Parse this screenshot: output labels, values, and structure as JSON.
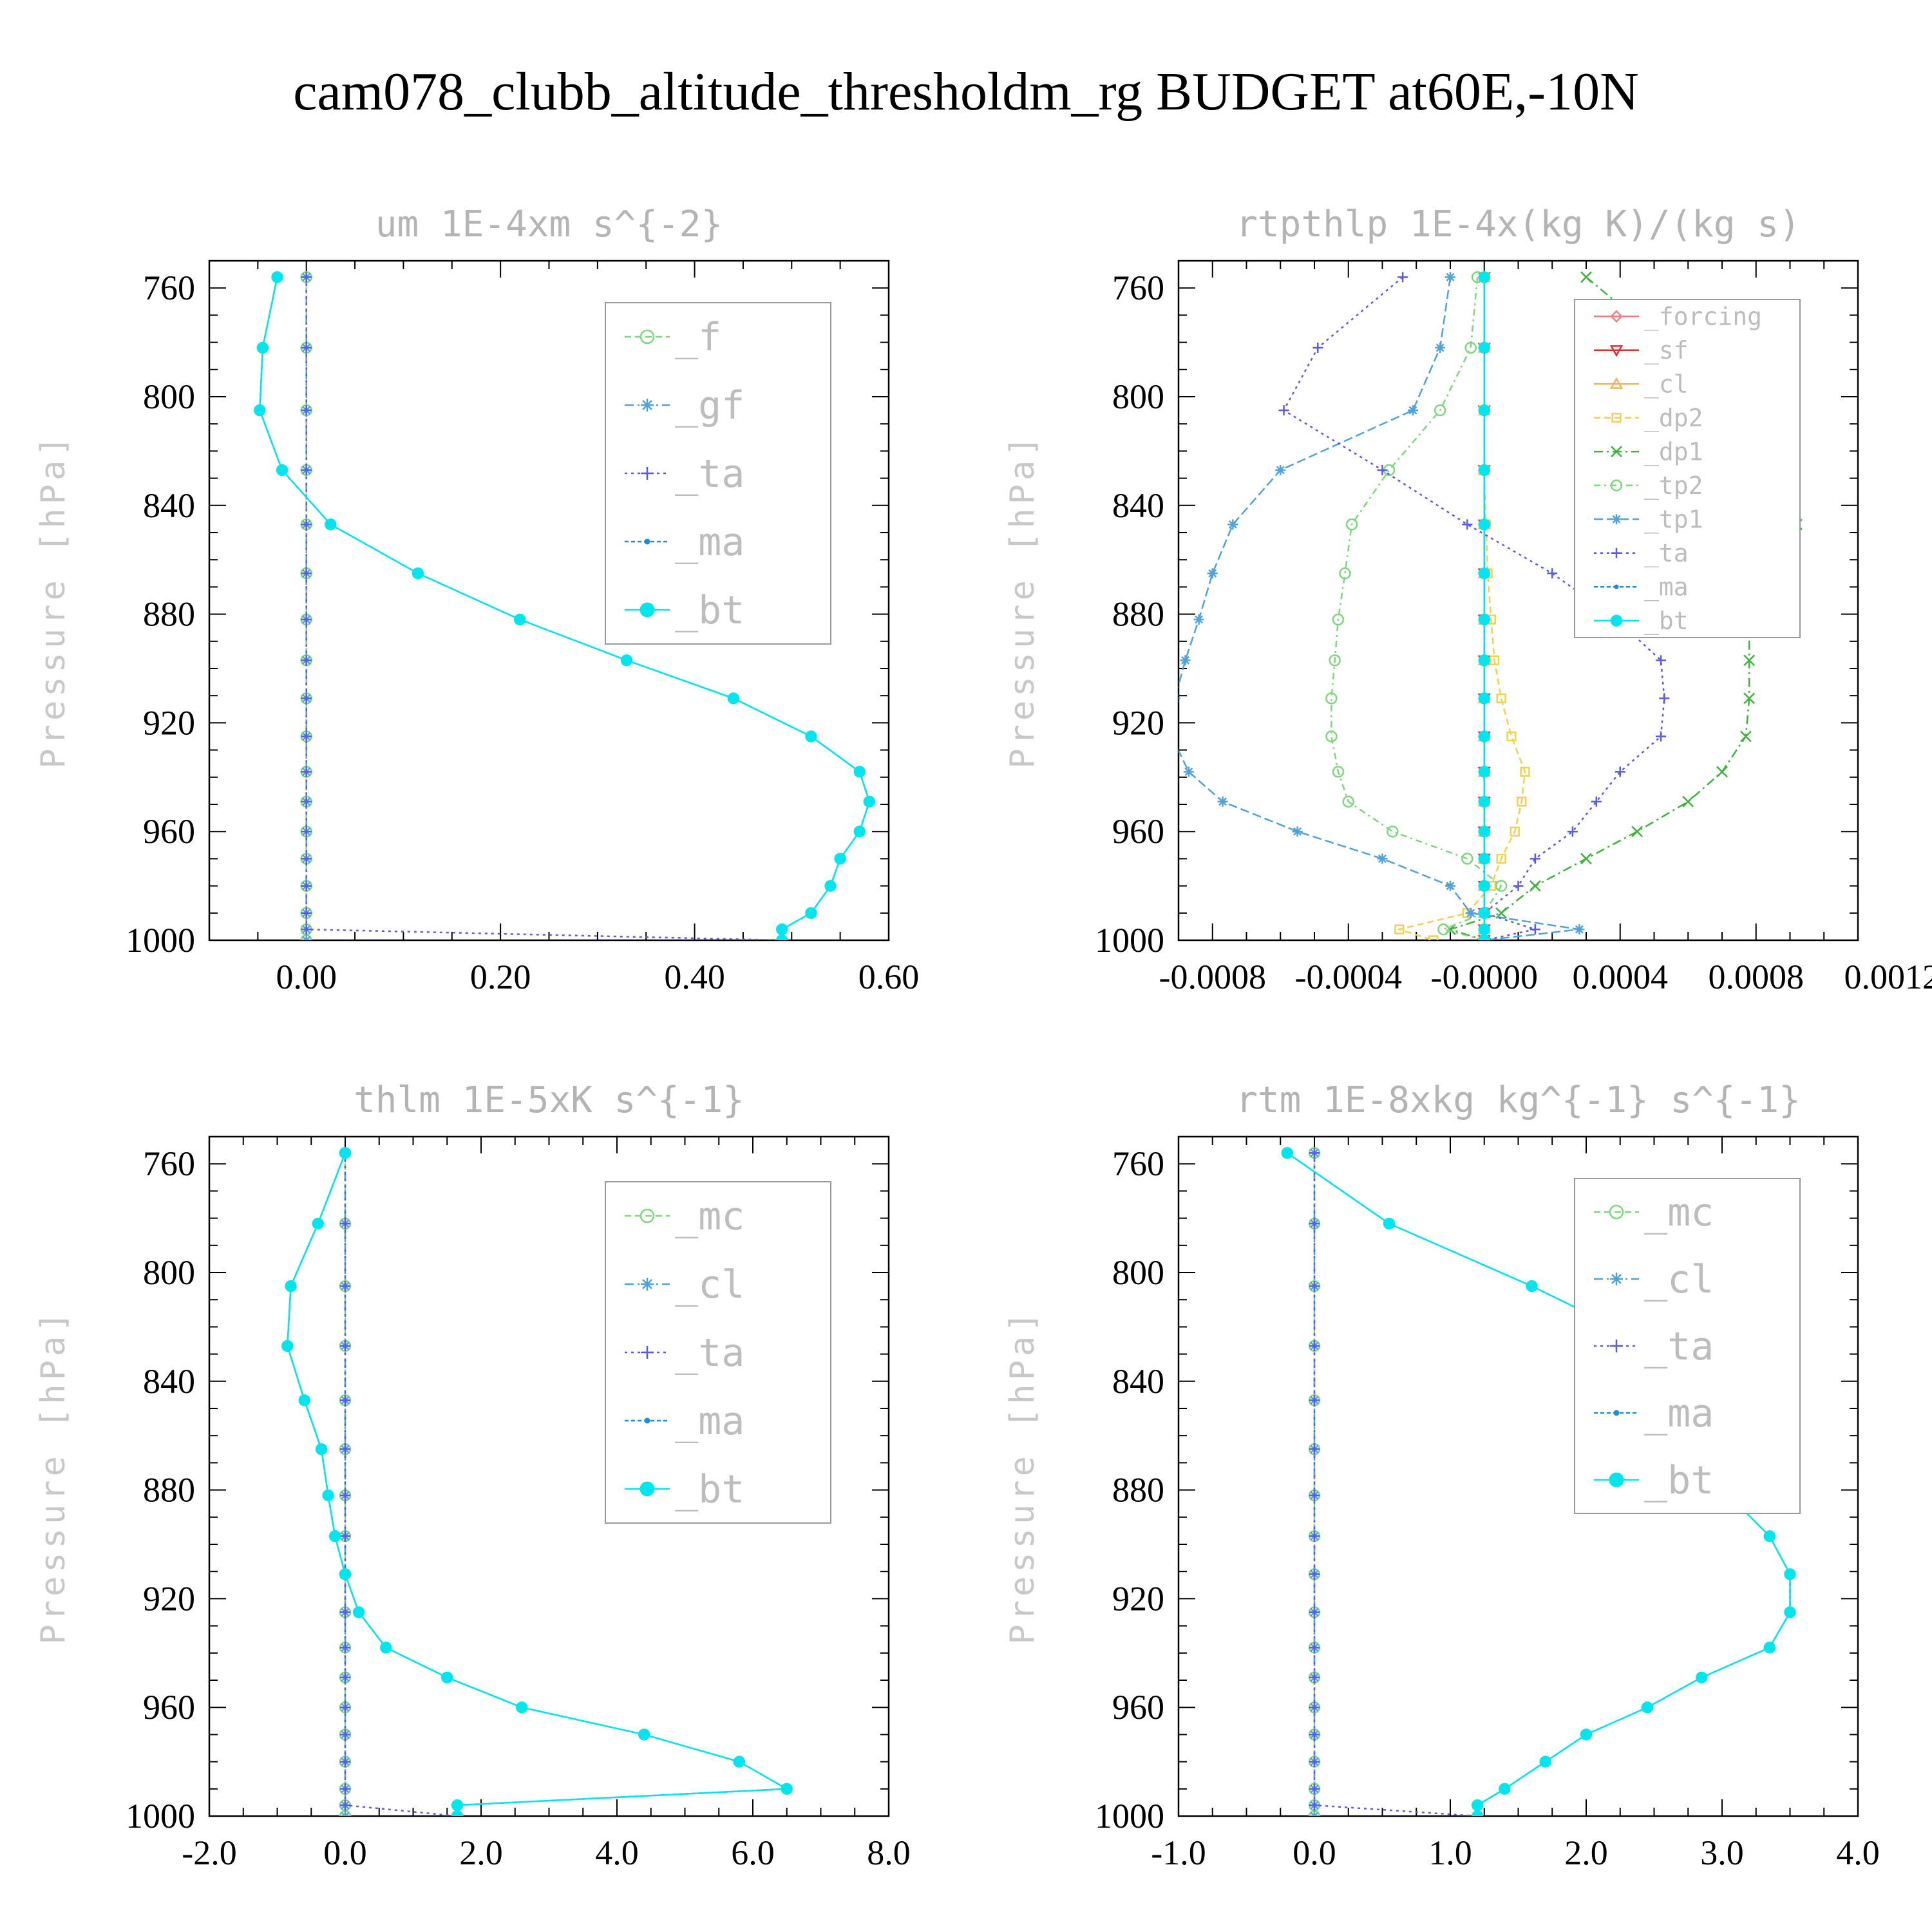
{
  "figure": {
    "title": "cam078_clubb_altitude_thresholdm_rg  BUDGET at60E,-10N"
  },
  "colors": {
    "_f": "#7fd67f",
    "_gf": "#4fa3d9",
    "_ta": "#5a5ae6",
    "_ma": "#1a8fd8",
    "_bt": "#00e5ee",
    "_forcing": "#f08080",
    "_sf": "#e03030",
    "_cl": "#f2b35a",
    "_dp2": "#f2d24a",
    "_dp1": "#3cb33c",
    "_tp2": "#7fd67f",
    "_tp1": "#4fa3d9",
    "_mc": "#7fd67f"
  },
  "chart_data": [
    {
      "type": "line",
      "title": "um  1E-4xm s^{-2}",
      "ylabel": "Pressure [hPa]",
      "xlim": [
        -0.1,
        0.6
      ],
      "xticks": [
        0.0,
        0.2,
        0.4,
        0.6
      ],
      "xtick_labels": [
        "0.00",
        "0.20",
        "0.40",
        "0.60"
      ],
      "ylim": [
        1000,
        750
      ],
      "yticks": [
        760,
        800,
        840,
        880,
        920,
        960,
        1000
      ],
      "ytick_labels": [
        "760",
        "800",
        "840",
        "880",
        "920",
        "960",
        "1000"
      ],
      "y": [
        756,
        782,
        805,
        827,
        847,
        865,
        882,
        897,
        911,
        925,
        938,
        949,
        960,
        970,
        980,
        990,
        996,
        1000
      ],
      "legend": {
        "position": "top-right",
        "font_size": 60
      },
      "series": [
        {
          "name": "_f",
          "color": "#7fd67f",
          "marker": "circle-open",
          "dash": "10,6",
          "values": [
            0,
            0,
            0,
            0,
            0,
            0,
            0,
            0,
            0,
            0,
            0,
            0,
            0,
            0,
            0,
            0,
            0,
            0
          ]
        },
        {
          "name": "_gf",
          "color": "#4fa3d9",
          "marker": "asterisk",
          "dash": "14,6,3,6",
          "values": [
            0,
            0,
            0,
            0,
            0,
            0,
            0,
            0,
            0,
            0,
            0,
            0,
            0,
            0,
            0,
            0,
            0,
            0
          ]
        },
        {
          "name": "_ta",
          "color": "#5a5ae6",
          "marker": "plus",
          "dash": "4,6",
          "values": [
            0,
            0,
            0,
            0,
            0,
            0,
            0,
            0,
            0,
            0,
            0,
            0,
            0,
            0,
            0,
            0,
            0.0,
            0.49
          ]
        },
        {
          "name": "_ma",
          "color": "#1a8fd8",
          "marker": "dot",
          "dash": "6,4",
          "values": [
            -0.03,
            -0.045,
            -0.048,
            -0.025,
            0.025,
            0.115,
            0.22,
            0.33,
            0.44,
            0.52,
            0.57,
            0.58,
            0.57,
            0.55,
            0.54,
            0.52,
            0.49,
            0.49
          ]
        },
        {
          "name": "_bt",
          "color": "#00e5ee",
          "marker": "dot-filled",
          "dash": "",
          "values": [
            -0.03,
            -0.045,
            -0.048,
            -0.025,
            0.025,
            0.115,
            0.22,
            0.33,
            0.44,
            0.52,
            0.57,
            0.58,
            0.57,
            0.55,
            0.54,
            0.52,
            0.49,
            0.49
          ]
        }
      ]
    },
    {
      "type": "line",
      "title": "rtpthlp  1E-4x(kg K)/(kg s)",
      "ylabel": "Pressure [hPa]",
      "xlim": [
        -0.0009,
        0.0011
      ],
      "xticks": [
        -0.0008,
        -0.0004,
        0.0,
        0.0004,
        0.0008,
        0.0012
      ],
      "xtick_labels": [
        "-0.0008",
        "-0.0004",
        "-0.0000",
        "0.0004",
        "0.0008",
        "0.0012"
      ],
      "ylim": [
        1000,
        750
      ],
      "yticks": [
        760,
        800,
        840,
        880,
        920,
        960,
        1000
      ],
      "ytick_labels": [
        "760",
        "800",
        "840",
        "880",
        "920",
        "960",
        "1000"
      ],
      "y": [
        756,
        782,
        805,
        827,
        847,
        865,
        882,
        897,
        911,
        925,
        938,
        949,
        960,
        970,
        980,
        990,
        996,
        1000
      ],
      "legend": {
        "position": "top-right",
        "font_size": 38
      },
      "series": [
        {
          "name": "_forcing",
          "color": "#f08080",
          "marker": "diamond",
          "dash": "",
          "values": [
            0,
            0,
            0,
            0,
            0,
            0,
            0,
            0,
            0,
            0,
            0,
            0,
            0,
            0,
            0,
            0,
            0,
            0
          ]
        },
        {
          "name": "_sf",
          "color": "#e03030",
          "marker": "triangle-down",
          "dash": "",
          "values": [
            0,
            0,
            0,
            0,
            0,
            0,
            0,
            0,
            0,
            0,
            0,
            0,
            0,
            0,
            0,
            0,
            0,
            0
          ]
        },
        {
          "name": "_cl",
          "color": "#f2b35a",
          "marker": "triangle-up",
          "dash": "",
          "values": [
            0,
            0,
            0,
            0,
            0,
            0,
            0,
            0,
            0,
            0,
            0,
            0,
            0,
            0,
            0,
            0,
            0,
            0
          ]
        },
        {
          "name": "_dp2",
          "color": "#f2d24a",
          "marker": "square-open",
          "dash": "10,6",
          "values": [
            0,
            0,
            0,
            0,
            5e-06,
            1e-05,
            2e-05,
            3e-05,
            5e-05,
            8e-05,
            0.00012,
            0.00011,
            9e-05,
            5e-05,
            2e-05,
            -5e-05,
            -0.00025,
            -0.00015
          ]
        },
        {
          "name": "_dp1",
          "color": "#3cb33c",
          "marker": "x",
          "dash": "14,6,3,6",
          "values": [
            0.0003,
            0.00055,
            0.0008,
            0.0009,
            0.00092,
            0.00085,
            0.00078,
            0.00078,
            0.00078,
            0.00077,
            0.0007,
            0.0006,
            0.00045,
            0.0003,
            0.00015,
            5e-05,
            -0.0001,
            0.0
          ]
        },
        {
          "name": "_tp2",
          "color": "#7fd67f",
          "marker": "circle-open",
          "dash": "10,6,3,6",
          "values": [
            -2e-05,
            -4e-05,
            -0.00013,
            -0.00028,
            -0.00039,
            -0.00041,
            -0.00043,
            -0.00044,
            -0.00045,
            -0.00045,
            -0.00043,
            -0.0004,
            -0.00027,
            -5e-05,
            5e-05,
            0.0,
            -0.00012,
            0.0
          ]
        },
        {
          "name": "_tp1",
          "color": "#4fa3d9",
          "marker": "asterisk",
          "dash": "14,6",
          "values": [
            -0.0001,
            -0.00013,
            -0.00021,
            -0.0006,
            -0.00074,
            -0.0008,
            -0.00084,
            -0.00088,
            -0.00091,
            -0.00092,
            -0.00087,
            -0.00077,
            -0.00055,
            -0.0003,
            -0.0001,
            -4e-05,
            0.00028,
            0.0
          ]
        },
        {
          "name": "_ta",
          "color": "#5a5ae6",
          "marker": "plus",
          "dash": "4,6",
          "values": [
            -0.00024,
            -0.00049,
            -0.00059,
            -0.0003,
            -5e-05,
            0.0002,
            0.00039,
            0.00052,
            0.00053,
            0.00052,
            0.0004,
            0.00033,
            0.00026,
            0.00015,
            0.0001,
            0.0,
            0.00015,
            0.0
          ]
        },
        {
          "name": "_ma",
          "color": "#1a8fd8",
          "marker": "dot",
          "dash": "6,4",
          "values": [
            0,
            0,
            0,
            0,
            0,
            0,
            0,
            0,
            0,
            0,
            0,
            0,
            0,
            0,
            0,
            0,
            0,
            0
          ]
        },
        {
          "name": "_bt",
          "color": "#00e5ee",
          "marker": "dot-filled",
          "dash": "",
          "values": [
            0,
            0,
            0,
            0,
            0,
            0,
            0,
            0,
            0,
            0,
            0,
            0,
            0,
            0,
            0,
            0,
            0,
            0
          ]
        }
      ]
    },
    {
      "type": "line",
      "title": "thlm  1E-5xK s^{-1}",
      "ylabel": "Pressure [hPa]",
      "xlim": [
        -2.0,
        8.0
      ],
      "xticks": [
        -2.0,
        0.0,
        2.0,
        4.0,
        6.0,
        8.0
      ],
      "xtick_labels": [
        "-2.0",
        "0.0",
        "2.0",
        "4.0",
        "6.0",
        "8.0"
      ],
      "ylim": [
        1000,
        750
      ],
      "yticks": [
        760,
        800,
        840,
        880,
        920,
        960,
        1000
      ],
      "ytick_labels": [
        "760",
        "800",
        "840",
        "880",
        "920",
        "960",
        "1000"
      ],
      "y": [
        756,
        782,
        805,
        827,
        847,
        865,
        882,
        897,
        911,
        925,
        938,
        949,
        960,
        970,
        980,
        990,
        996,
        1000
      ],
      "legend": {
        "position": "top-right",
        "font_size": 60
      },
      "series": [
        {
          "name": "_mc",
          "color": "#7fd67f",
          "marker": "circle-open",
          "dash": "10,6",
          "values": [
            0,
            0,
            0,
            0,
            0,
            0,
            0,
            0,
            0,
            0,
            0,
            0,
            0,
            0,
            0,
            0,
            0,
            0
          ]
        },
        {
          "name": "_cl",
          "color": "#4fa3d9",
          "marker": "asterisk",
          "dash": "14,6,3,6",
          "values": [
            0,
            0,
            0,
            0,
            0,
            0,
            0,
            0,
            0,
            0,
            0,
            0,
            0,
            0,
            0,
            0,
            0,
            0
          ]
        },
        {
          "name": "_ta",
          "color": "#5a5ae6",
          "marker": "plus",
          "dash": "4,6",
          "values": [
            0,
            0,
            0,
            0,
            0,
            0,
            0,
            0,
            0,
            0,
            0,
            0,
            0,
            0,
            0,
            0,
            0,
            1.65
          ]
        },
        {
          "name": "_ma",
          "color": "#1a8fd8",
          "marker": "dot",
          "dash": "6,4",
          "values": [
            0,
            -0.4,
            -0.8,
            -0.85,
            -0.6,
            -0.35,
            -0.25,
            -0.15,
            0.0,
            0.2,
            0.6,
            1.5,
            2.6,
            4.4,
            5.8,
            6.5,
            1.65,
            1.65
          ]
        },
        {
          "name": "_bt",
          "color": "#00e5ee",
          "marker": "dot-filled",
          "dash": "",
          "values": [
            0,
            -0.4,
            -0.8,
            -0.85,
            -0.6,
            -0.35,
            -0.25,
            -0.15,
            0.0,
            0.2,
            0.6,
            1.5,
            2.6,
            4.4,
            5.8,
            6.5,
            1.65,
            1.65
          ]
        }
      ]
    },
    {
      "type": "line",
      "title": "rtm  1E-8xkg kg^{-1} s^{-1}",
      "ylabel": "Pressure [hPa]",
      "xlim": [
        -1.0,
        4.0
      ],
      "xticks": [
        -1.0,
        0.0,
        1.0,
        2.0,
        3.0,
        4.0
      ],
      "xtick_labels": [
        "-1.0",
        "0.0",
        "1.0",
        "2.0",
        "3.0",
        "4.0"
      ],
      "ylim": [
        1000,
        750
      ],
      "yticks": [
        760,
        800,
        840,
        880,
        920,
        960,
        1000
      ],
      "ytick_labels": [
        "760",
        "800",
        "840",
        "880",
        "920",
        "960",
        "1000"
      ],
      "y": [
        756,
        782,
        805,
        827,
        847,
        865,
        882,
        897,
        911,
        925,
        938,
        949,
        960,
        970,
        980,
        990,
        996,
        1000
      ],
      "legend": {
        "position": "top-right",
        "font_size": 60
      },
      "series": [
        {
          "name": "_mc",
          "color": "#7fd67f",
          "marker": "circle-open",
          "dash": "10,6",
          "values": [
            0,
            0,
            0,
            0,
            0,
            0,
            0,
            0,
            0,
            0,
            0,
            0,
            0,
            0,
            0,
            0,
            0,
            0
          ]
        },
        {
          "name": "_cl",
          "color": "#4fa3d9",
          "marker": "asterisk",
          "dash": "14,6,3,6",
          "values": [
            0,
            0,
            0,
            0,
            0,
            0,
            0,
            0,
            0,
            0,
            0,
            0,
            0,
            0,
            0,
            0,
            0,
            0
          ]
        },
        {
          "name": "_ta",
          "color": "#5a5ae6",
          "marker": "plus",
          "dash": "4,6",
          "values": [
            0,
            0,
            0,
            0,
            0,
            0,
            0,
            0,
            0,
            0,
            0,
            0,
            0,
            0,
            0,
            0,
            0,
            1.2
          ]
        },
        {
          "name": "_ma",
          "color": "#1a8fd8",
          "marker": "dot",
          "dash": "6,4",
          "values": [
            -0.2,
            0.55,
            1.6,
            2.5,
            2.6,
            2.75,
            3.05,
            3.35,
            3.5,
            3.5,
            3.35,
            2.85,
            2.45,
            2.0,
            1.7,
            1.4,
            1.2,
            1.2
          ]
        },
        {
          "name": "_bt",
          "color": "#00e5ee",
          "marker": "dot-filled",
          "dash": "",
          "values": [
            -0.2,
            0.55,
            1.6,
            2.5,
            2.6,
            2.75,
            3.05,
            3.35,
            3.5,
            3.5,
            3.35,
            2.85,
            2.45,
            2.0,
            1.7,
            1.4,
            1.2,
            1.2
          ]
        }
      ]
    }
  ]
}
